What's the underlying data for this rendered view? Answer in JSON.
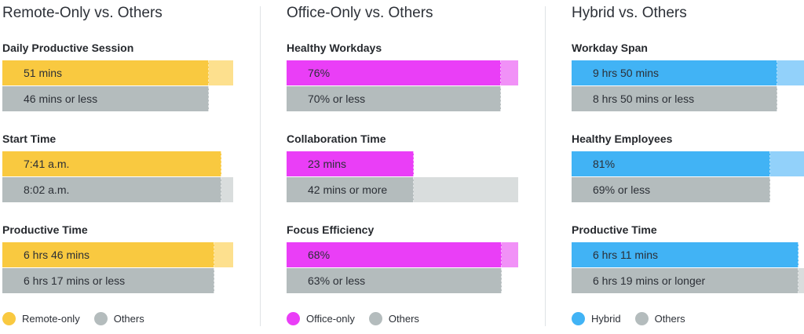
{
  "colors": {
    "remote": "#f9c940",
    "remote_light": "#fde08e",
    "office": "#ea3ef7",
    "office_light": "#f191f7",
    "hybrid": "#41b3f5",
    "hybrid_light": "#92d1fa",
    "others": "#b4bcbd",
    "others_light": "#d9dddd"
  },
  "chart_data": [
    {
      "type": "bar",
      "title": "Remote-Only vs. Others",
      "color": "remote",
      "legend": [
        "Remote-only",
        "Others"
      ],
      "metrics": [
        {
          "label": "Daily Productive Session",
          "group_text": "51 mins",
          "group_value": 0.895,
          "group_extent": 1.0,
          "others_text": "46 mins or less",
          "others_value": 0.895,
          "others_extent": 0.895
        },
        {
          "label": "Start Time",
          "group_text": "7:41 a.m.",
          "group_value": 0.95,
          "group_extent": 0.95,
          "others_text": "8:02 a.m.",
          "others_value": 0.95,
          "others_extent": 1.0
        },
        {
          "label": "Productive Time",
          "group_text": "6 hrs 46 mins",
          "group_value": 0.92,
          "group_extent": 1.0,
          "others_text": "6 hrs 17 mins or less",
          "others_value": 0.92,
          "others_extent": 0.92
        }
      ]
    },
    {
      "type": "bar",
      "title": "Office-Only vs. Others",
      "color": "office",
      "legend": [
        "Office-only",
        "Others"
      ],
      "metrics": [
        {
          "label": "Healthy Workdays",
          "group_text": "76%",
          "group_value": 0.925,
          "group_extent": 1.0,
          "others_text": "70% or less",
          "others_value": 0.925,
          "others_extent": 0.925
        },
        {
          "label": "Collaboration Time",
          "group_text": "23 mins",
          "group_value": 0.55,
          "group_extent": 0.55,
          "others_text": "42 mins or more",
          "others_value": 0.55,
          "others_extent": 1.0
        },
        {
          "label": "Focus Efficiency",
          "group_text": "68%",
          "group_value": 0.93,
          "group_extent": 1.0,
          "others_text": "63% or less",
          "others_value": 0.93,
          "others_extent": 0.93
        }
      ]
    },
    {
      "type": "bar",
      "title": "Hybrid vs. Others",
      "color": "hybrid",
      "legend": [
        "Hybrid",
        "Others"
      ],
      "metrics": [
        {
          "label": "Workday Span",
          "group_text": "9 hrs 50 mins",
          "group_value": 0.885,
          "group_extent": 1.0,
          "others_text": "8 hrs 50 mins or less",
          "others_value": 0.885,
          "others_extent": 0.885
        },
        {
          "label": "Healthy Employees",
          "group_text": "81%",
          "group_value": 0.855,
          "group_extent": 1.0,
          "others_text": "69% or less",
          "others_value": 0.855,
          "others_extent": 0.855
        },
        {
          "label": "Productive Time",
          "group_text": "6 hrs 11 mins",
          "group_value": 0.975,
          "group_extent": 0.975,
          "others_text": "6 hrs 19 mins or longer",
          "others_value": 0.975,
          "others_extent": 1.0
        }
      ]
    }
  ]
}
